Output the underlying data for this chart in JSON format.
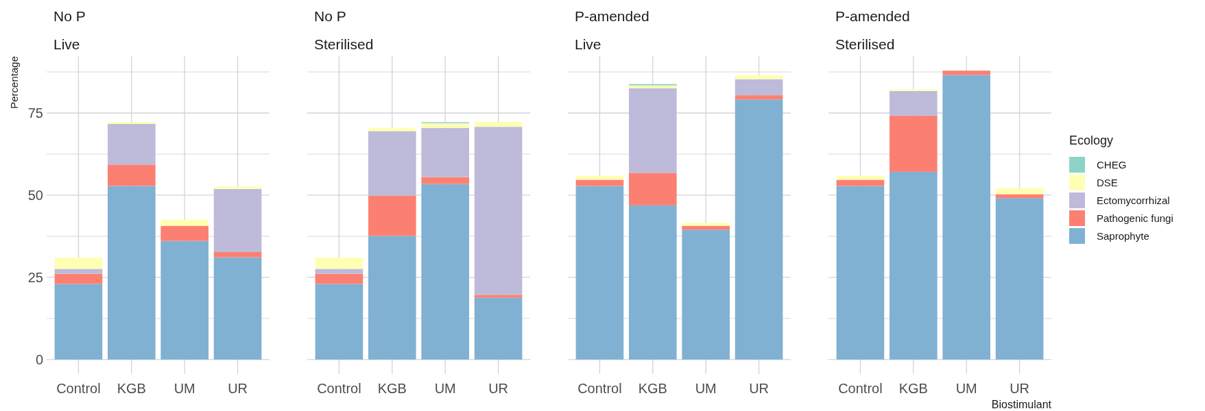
{
  "chart_data": [
    {
      "type": "bar",
      "title": "No P",
      "subtitle": "Live",
      "ylabel": "Percentage",
      "categories": [
        "Control",
        "KGB",
        "UM",
        "UR"
      ],
      "stacked": true,
      "ylim": [
        -4.4,
        92.3
      ],
      "yticks": [
        0,
        {
          "value": 12.5,
          "label": null
        },
        25,
        {
          "value": 37.5,
          "label": null
        },
        50,
        {
          "value": 62.5,
          "label": null
        },
        75,
        {
          "value": 87.5,
          "label": null
        }
      ],
      "grid": true,
      "series": [
        {
          "color": "#80b1d3",
          "values": [
            23.0,
            52.8,
            36.1,
            31.1
          ]
        },
        {
          "color": "#fb8072",
          "values": [
            3.1,
            6.5,
            4.6,
            1.6
          ]
        },
        {
          "color": "#bebada",
          "values": [
            1.5,
            12.4,
            null,
            19.2
          ]
        },
        {
          "color": "#ffffb3",
          "values": [
            3.4,
            0.6,
            1.9,
            0.7
          ]
        }
      ]
    },
    {
      "type": "bar",
      "title": "No P",
      "subtitle": "Sterilised",
      "categories": [
        "Control",
        "KGB",
        "UM",
        "UR"
      ],
      "stacked": true,
      "ylim": [
        -4.4,
        92.3
      ],
      "yticks": [
        0,
        {
          "value": 12.5,
          "label": null
        },
        25,
        {
          "value": 37.5,
          "label": null
        },
        50,
        {
          "value": 62.5,
          "label": null
        },
        75,
        {
          "value": 87.5,
          "label": null
        }
      ],
      "grid": true,
      "tick_labels": "x",
      "series": [
        {
          "color": "#80b1d3",
          "values": [
            23.0,
            37.6,
            53.4,
            18.8
          ]
        },
        {
          "color": "#fb8072",
          "values": [
            3.1,
            12.3,
            2.1,
            0.9
          ]
        },
        {
          "color": "#bebada",
          "values": [
            1.5,
            19.6,
            15.0,
            51.1
          ]
        },
        {
          "color": "#ffffb3",
          "values": [
            3.4,
            1.0,
            1.4,
            1.5
          ]
        },
        {
          "color": "#8dd3c7",
          "values": [
            null,
            null,
            0.3,
            null
          ]
        }
      ]
    },
    {
      "type": "bar",
      "title": "P-amended",
      "subtitle": "Live",
      "categories": [
        "Control",
        "KGB",
        "UM",
        "UR"
      ],
      "stacked": true,
      "ylim": [
        -4.4,
        92.3
      ],
      "yticks": [
        0,
        {
          "value": 12.5,
          "label": null
        },
        25,
        {
          "value": 37.5,
          "label": null
        },
        50,
        {
          "value": 62.5,
          "label": null
        },
        75,
        {
          "value": 87.5,
          "label": null
        }
      ],
      "grid": true,
      "tick_labels": "x",
      "series": [
        {
          "color": "#80b1d3",
          "values": [
            52.8,
            46.9,
            39.5,
            79.1
          ]
        },
        {
          "color": "#fb8072",
          "values": [
            1.9,
            9.9,
            1.2,
            1.3
          ]
        },
        {
          "color": "#bebada",
          "values": [
            null,
            25.7,
            null,
            4.9
          ]
        },
        {
          "color": "#ffffb3",
          "values": [
            1.2,
            0.9,
            0.9,
            1.2
          ]
        },
        {
          "color": "#8dd3c7",
          "values": [
            null,
            0.4,
            null,
            null
          ]
        }
      ]
    },
    {
      "type": "bar",
      "title": "P-amended",
      "subtitle": "Sterilised",
      "xlabel": "Biostimulant",
      "legend_title": "Ecology",
      "legend": "right",
      "categories": [
        "Control",
        "KGB",
        "UM",
        "UR"
      ],
      "stacked": true,
      "ylim": [
        -4.4,
        92.3
      ],
      "yticks": [
        0,
        {
          "value": 12.5,
          "label": null
        },
        25,
        {
          "value": 37.5,
          "label": null
        },
        50,
        {
          "value": 62.5,
          "label": null
        },
        75,
        {
          "value": 87.5,
          "label": null
        }
      ],
      "grid": true,
      "tick_labels": "x",
      "series": [
        {
          "name": "Saprophyte",
          "color": "#80b1d3",
          "values": [
            52.8,
            57.1,
            86.6,
            49.1
          ]
        },
        {
          "name": "Pathogenic fungi",
          "color": "#fb8072",
          "values": [
            1.9,
            17.1,
            1.3,
            1.2
          ]
        },
        {
          "name": "Ectomycorrhizal",
          "color": "#bebada",
          "values": [
            null,
            7.5,
            null,
            null
          ]
        },
        {
          "name": "DSE",
          "color": "#ffffb3",
          "values": [
            1.2,
            0.5,
            null,
            1.9
          ]
        },
        {
          "name": "CHEG",
          "color": "#8dd3c7",
          "values": [
            null,
            null,
            null,
            null
          ]
        }
      ]
    }
  ]
}
